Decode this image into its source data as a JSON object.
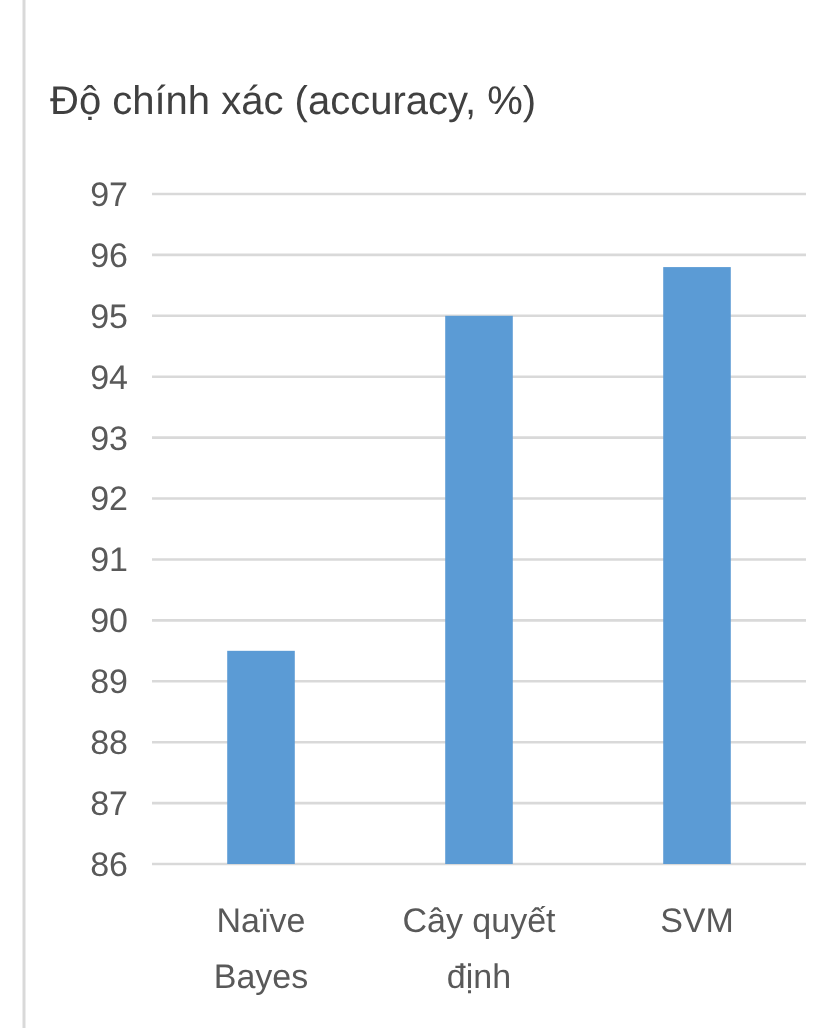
{
  "chart_data": {
    "type": "bar",
    "title": "Độ chính xác (accuracy, %)",
    "categories": [
      "Naïve Bayes",
      "Cây quyết định",
      "SVM"
    ],
    "values": [
      89.5,
      95.0,
      95.8
    ],
    "color": "#5b9bd5",
    "ylim": [
      86,
      97
    ],
    "yticks": [
      86,
      87,
      88,
      89,
      90,
      91,
      92,
      93,
      94,
      95,
      96,
      97
    ],
    "grid": "y"
  }
}
